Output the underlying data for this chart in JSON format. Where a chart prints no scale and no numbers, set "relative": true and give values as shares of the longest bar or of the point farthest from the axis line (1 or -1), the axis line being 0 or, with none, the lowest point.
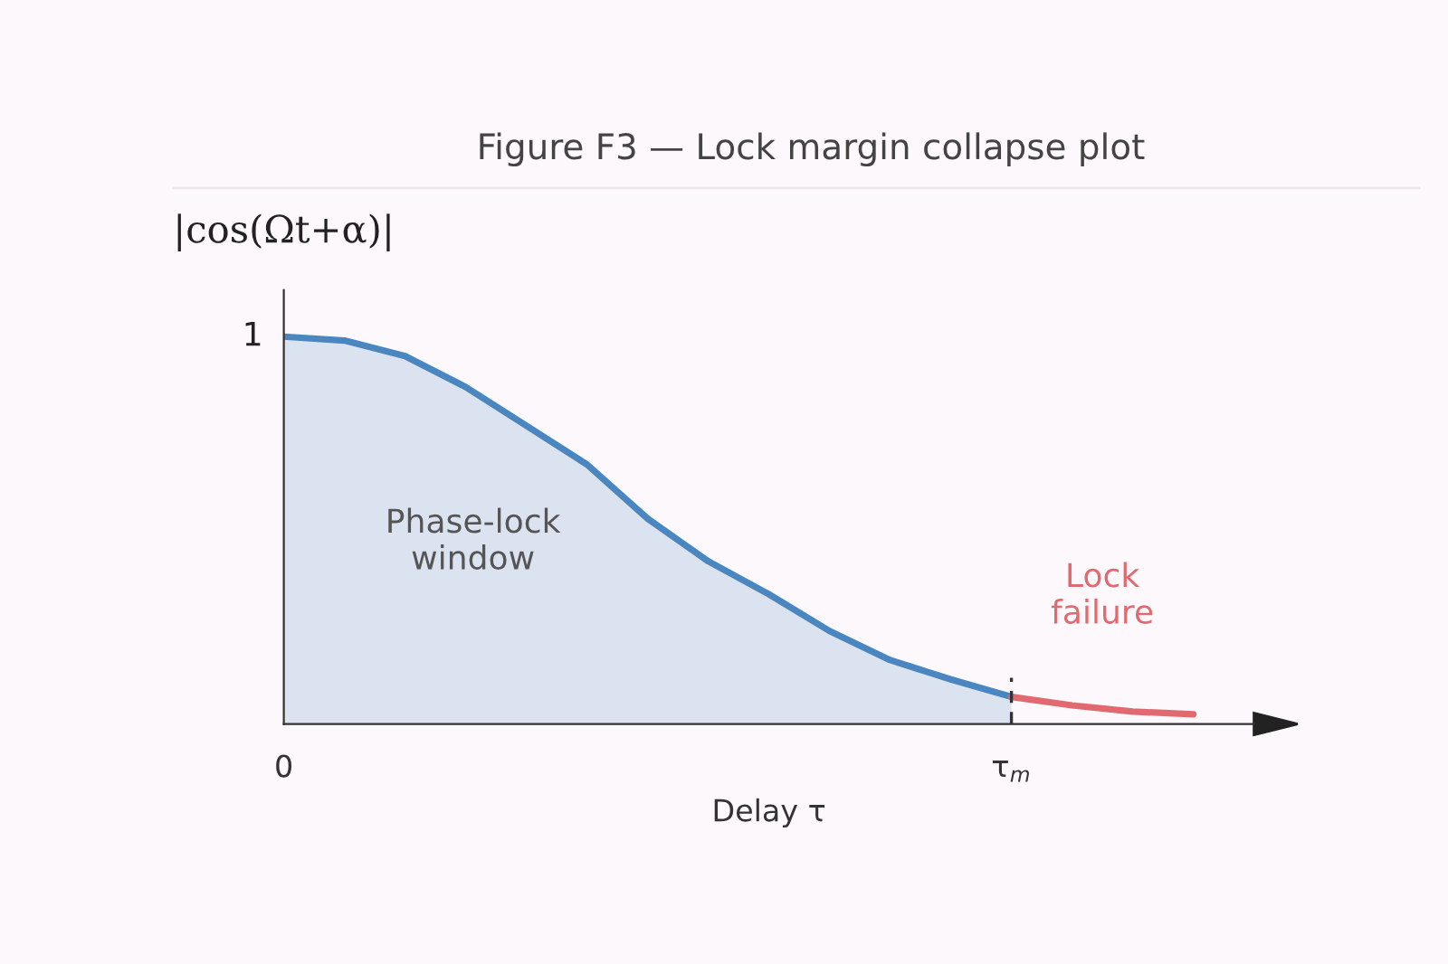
{
  "chart_data": {
    "type": "area",
    "title": "Figure F3 — Lock margin collapse plot",
    "xlabel": "Delay τ",
    "ylabel": "|cos(Ωt+α)|",
    "relative": true,
    "categories": [
      "0",
      null,
      null,
      null,
      null,
      null,
      null,
      null,
      null,
      null,
      null,
      null,
      "τ$_{m}$",
      null,
      null,
      null
    ],
    "series": [
      {
        "color": "#4a86c0",
        "values": [
          1.0,
          0.99,
          0.95,
          0.87,
          0.77,
          0.67,
          0.53,
          0.42,
          0.335,
          0.24,
          0.165,
          0.115,
          0.07,
          null,
          null,
          null
        ]
      },
      {
        "type": "line",
        "color": "#e06a70",
        "values": [
          null,
          null,
          null,
          null,
          null,
          null,
          null,
          null,
          null,
          null,
          null,
          null,
          0.07,
          0.048,
          0.032,
          0.025
        ]
      }
    ],
    "ref_lines": [
      {
        "axis": "x",
        "value": "τ$_{m}$",
        "line_style": "dashed",
        "color": "#333333"
      }
    ],
    "annotations": [
      {
        "text": "1",
        "x": "0",
        "y": 1
      },
      "Phase-lock\nwindow",
      "Lock\nfailure"
    ],
    "legend": false,
    "grid": false
  }
}
